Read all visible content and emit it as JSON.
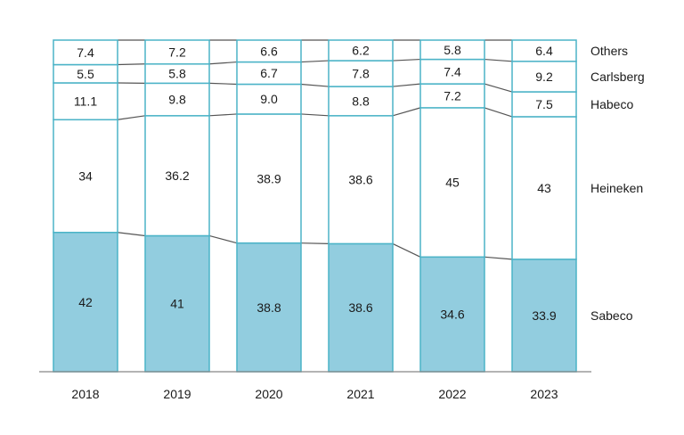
{
  "chart_data": {
    "type": "bar",
    "stacked": true,
    "normalized": true,
    "title": "",
    "xlabel": "",
    "ylabel": "",
    "ylim": [
      0,
      100
    ],
    "grid": false,
    "legend_position": "right",
    "categories": [
      "2018",
      "2019",
      "2020",
      "2021",
      "2022",
      "2023"
    ],
    "series": [
      {
        "name": "Sabeco",
        "values": [
          42,
          41,
          38.8,
          38.6,
          34.6,
          33.9
        ],
        "labels": [
          "42",
          "41",
          "38.8",
          "38.6",
          "34.6",
          "33.9"
        ],
        "fill": "#92cddf"
      },
      {
        "name": "Heineken",
        "values": [
          34,
          36.2,
          38.9,
          38.6,
          45,
          43
        ],
        "labels": [
          "34",
          "36.2",
          "38.9",
          "38.6",
          "45",
          "43"
        ],
        "fill": "#ffffff"
      },
      {
        "name": "Habeco",
        "values": [
          11.1,
          9.8,
          9.0,
          8.8,
          7.2,
          7.5
        ],
        "labels": [
          "11.1",
          "9.8",
          "9.0",
          "8.8",
          "7.2",
          "7.5"
        ],
        "fill": "#ffffff"
      },
      {
        "name": "Carlsberg",
        "values": [
          5.5,
          5.8,
          6.7,
          7.8,
          7.4,
          9.2
        ],
        "labels": [
          "5.5",
          "5.8",
          "6.7",
          "7.8",
          "7.4",
          "9.2"
        ],
        "fill": "#ffffff"
      },
      {
        "name": "Others",
        "values": [
          7.4,
          7.2,
          6.6,
          6.2,
          5.8,
          6.4
        ],
        "labels": [
          "7.4",
          "7.2",
          "6.6",
          "6.2",
          "5.8",
          "6.4"
        ],
        "fill": "#ffffff"
      }
    ],
    "colors": {
      "border": "#4bb3c7",
      "connector": "#555555",
      "axis": "#888888"
    }
  }
}
